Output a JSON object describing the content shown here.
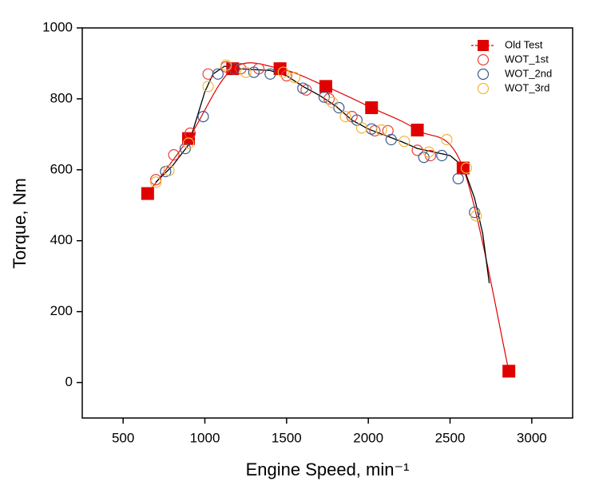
{
  "chart_data": {
    "type": "line",
    "x_label": "Engine Speed, min⁻¹",
    "y_label": "Torque, Nm",
    "xlim": [
      250,
      3250
    ],
    "ylim": [
      -100,
      1000
    ],
    "xticks": [
      500,
      1000,
      1500,
      2000,
      2500,
      3000
    ],
    "yticks": [
      0,
      200,
      400,
      600,
      800,
      1000
    ],
    "legend": "top-right",
    "series": [
      {
        "name": "Old Test",
        "color": "#e00000",
        "marker": "square",
        "line": true,
        "smooth": true,
        "x": [
          650,
          900,
          1170,
          1460,
          1740,
          2020,
          2300,
          2580,
          2860
        ],
        "values": [
          533,
          688,
          885,
          885,
          835,
          775,
          712,
          605,
          32
        ]
      },
      {
        "name": "WOT_1st",
        "color": "#e8403a",
        "marker": "circle",
        "line": false,
        "x": [
          700,
          810,
          910,
          1020,
          1130,
          1220,
          1330,
          1500,
          1620,
          1760,
          1900,
          2040,
          2120,
          2300,
          2380
        ],
        "values": [
          572,
          642,
          703,
          870,
          890,
          885,
          885,
          865,
          825,
          800,
          750,
          710,
          710,
          655,
          640
        ]
      },
      {
        "name": "WOT_2nd",
        "color": "#3a5a8c",
        "marker": "circle",
        "line": false,
        "x": [
          760,
          880,
          990,
          1080,
          1180,
          1300,
          1400,
          1600,
          1730,
          1820,
          1930,
          2020,
          2140,
          2340,
          2450,
          2550,
          2650
        ],
        "values": [
          595,
          660,
          750,
          870,
          885,
          875,
          870,
          830,
          805,
          775,
          740,
          715,
          685,
          635,
          640,
          575,
          480
        ]
      },
      {
        "name": "WOT_3rd",
        "color": "#f5b53a",
        "marker": "circle",
        "line": false,
        "x": [
          700,
          780,
          900,
          1020,
          1130,
          1250,
          1480,
          1550,
          1780,
          1860,
          1960,
          2080,
          2220,
          2370,
          2480,
          2600,
          2660
        ],
        "values": [
          565,
          598,
          675,
          835,
          895,
          875,
          875,
          860,
          790,
          750,
          718,
          712,
          680,
          650,
          685,
          605,
          470
        ]
      },
      {
        "color": "#000000",
        "marker": "none",
        "line": true,
        "smooth": false,
        "x": [
          700,
          800,
          900,
          1000,
          1050,
          1120,
          1200,
          1400,
          1500,
          1600,
          1700,
          1800,
          1900,
          2000,
          2200,
          2300,
          2500,
          2580,
          2650,
          2700,
          2740
        ],
        "values": [
          565,
          610,
          670,
          820,
          870,
          892,
          885,
          880,
          865,
          835,
          810,
          780,
          740,
          715,
          680,
          660,
          640,
          610,
          520,
          420,
          280
        ]
      }
    ]
  }
}
